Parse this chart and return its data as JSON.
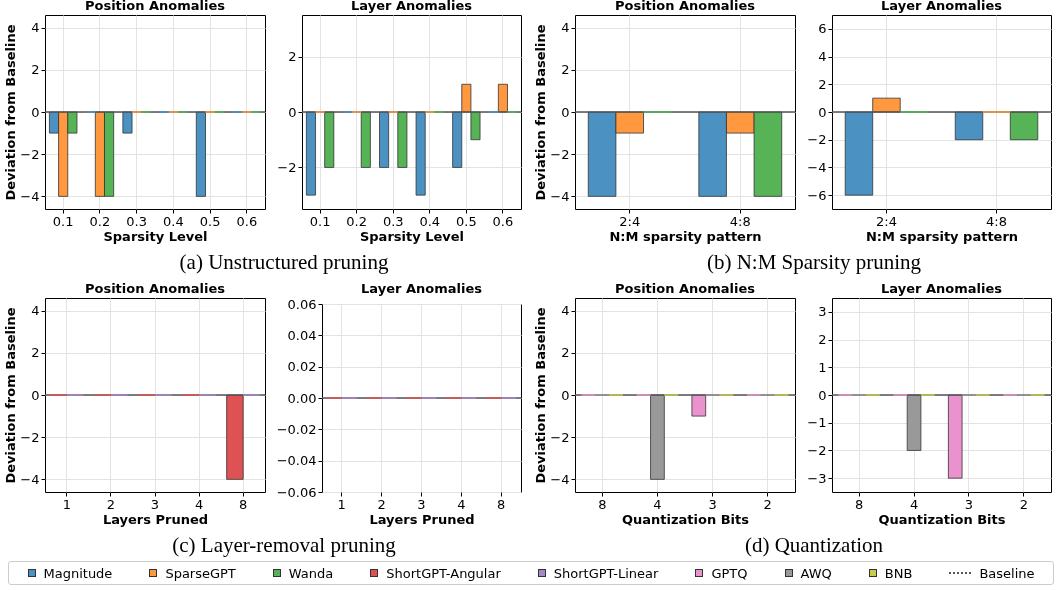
{
  "chart_data": [
    {
      "type": "bar",
      "title": "Position Anomalies",
      "xlabel": "Sparsity Level",
      "ylabel": "Deviation from Baseline",
      "categories": [
        "0.1",
        "0.2",
        "0.3",
        "0.4",
        "0.5",
        "0.6"
      ],
      "series": [
        {
          "name": "Magnitude",
          "color": "#4b92c3",
          "values": [
            -1,
            0,
            -1,
            0,
            -4,
            0
          ]
        },
        {
          "name": "SparseGPT",
          "color": "#ff983e",
          "values": [
            -4,
            -4,
            0,
            0,
            0,
            0
          ]
        },
        {
          "name": "Wanda",
          "color": "#56b356",
          "values": [
            -1,
            -4,
            0,
            0,
            0,
            0
          ]
        }
      ],
      "ylim": [
        -4.6,
        4.6
      ],
      "yticks": [
        -4,
        -2,
        0,
        2,
        4
      ],
      "grid": true,
      "legend": "bottom",
      "annotations": [
        "(a) Unstructured pruning"
      ],
      "ref_lines": [
        {
          "axis": "y",
          "value": 0,
          "label": "Baseline",
          "color": "#555555"
        }
      ]
    },
    {
      "type": "bar",
      "title": "Layer Anomalies",
      "xlabel": "Sparsity Level",
      "categories": [
        "0.1",
        "0.2",
        "0.3",
        "0.4",
        "0.5",
        "0.6"
      ],
      "series": [
        {
          "name": "Magnitude",
          "color": "#4b92c3",
          "values": [
            -3,
            0,
            -2,
            -3,
            -2,
            0
          ]
        },
        {
          "name": "SparseGPT",
          "color": "#ff983e",
          "values": [
            0,
            0,
            0,
            0,
            1,
            1
          ]
        },
        {
          "name": "Wanda",
          "color": "#56b356",
          "values": [
            -2,
            -2,
            -2,
            0,
            -1,
            0
          ]
        }
      ],
      "ylim": [
        -3.5,
        3.5
      ],
      "yticks": [
        -2,
        0,
        2
      ],
      "grid": true,
      "legend": "bottom",
      "ref_lines": [
        {
          "axis": "y",
          "value": 0,
          "color": "#555555"
        }
      ]
    },
    {
      "type": "bar",
      "title": "Position Anomalies",
      "xlabel": "N:M sparsity pattern",
      "ylabel": "Deviation from Baseline",
      "categories": [
        "2:4",
        "4:8"
      ],
      "series": [
        {
          "name": "Magnitude",
          "color": "#4b92c3",
          "values": [
            -4,
            -4
          ]
        },
        {
          "name": "SparseGPT",
          "color": "#ff983e",
          "values": [
            -1,
            -1
          ]
        },
        {
          "name": "Wanda",
          "color": "#56b356",
          "values": [
            0,
            -4
          ]
        }
      ],
      "ylim": [
        -4.6,
        4.6
      ],
      "yticks": [
        -4,
        -2,
        0,
        2,
        4
      ],
      "grid": true,
      "legend": "bottom",
      "annotations": [
        "(b) N:M Sparsity pruning"
      ],
      "ref_lines": [
        {
          "axis": "y",
          "value": 0,
          "color": "#555555"
        }
      ]
    },
    {
      "type": "bar",
      "title": "Layer Anomalies",
      "xlabel": "N:M sparsity pattern",
      "categories": [
        "2:4",
        "4:8"
      ],
      "series": [
        {
          "name": "Magnitude",
          "color": "#4b92c3",
          "values": [
            -6,
            -2
          ]
        },
        {
          "name": "SparseGPT",
          "color": "#ff983e",
          "values": [
            1,
            0
          ]
        },
        {
          "name": "Wanda",
          "color": "#56b356",
          "values": [
            0,
            -2
          ]
        }
      ],
      "ylim": [
        -7,
        7
      ],
      "yticks": [
        -6,
        -4,
        -2,
        0,
        2,
        4,
        6
      ],
      "grid": true,
      "legend": "bottom",
      "ref_lines": [
        {
          "axis": "y",
          "value": 0,
          "color": "#555555"
        }
      ]
    },
    {
      "type": "bar",
      "title": "Position Anomalies",
      "xlabel": "Layers Pruned",
      "ylabel": "Deviation from Baseline",
      "categories": [
        "1",
        "2",
        "3",
        "4",
        "8"
      ],
      "series": [
        {
          "name": "ShortGPT-Angular",
          "color": "#de5253",
          "values": [
            0,
            0,
            0,
            0,
            -4
          ]
        },
        {
          "name": "ShortGPT-Linear",
          "color": "#a985ca",
          "values": [
            0,
            0,
            0,
            0,
            0
          ]
        }
      ],
      "ylim": [
        -4.6,
        4.6
      ],
      "yticks": [
        -4,
        -2,
        0,
        2,
        4
      ],
      "grid": true,
      "legend": "bottom",
      "annotations": [
        "(c) Layer-removal pruning"
      ],
      "ref_lines": [
        {
          "axis": "y",
          "value": 0,
          "color": "#555555"
        }
      ]
    },
    {
      "type": "bar",
      "title": "Layer Anomalies",
      "xlabel": "Layers Pruned",
      "categories": [
        "1",
        "2",
        "3",
        "4",
        "8"
      ],
      "series": [
        {
          "name": "ShortGPT-Angular",
          "color": "#de5253",
          "values": [
            0,
            0,
            0,
            0,
            0
          ]
        },
        {
          "name": "ShortGPT-Linear",
          "color": "#a985ca",
          "values": [
            0,
            0,
            0,
            0,
            0
          ]
        }
      ],
      "ylim": [
        -0.06,
        0.06
      ],
      "yticks": [
        {
          "value": -0.06,
          "label": "−0.06"
        },
        {
          "value": -0.04,
          "label": "−0.04"
        },
        {
          "value": -0.02,
          "label": "−0.02"
        },
        {
          "value": 0,
          "label": "0.00"
        },
        {
          "value": 0.02,
          "label": "0.02"
        },
        {
          "value": 0.04,
          "label": "0.04"
        },
        {
          "value": 0.06,
          "label": "0.06"
        }
      ],
      "grid": true,
      "legend": "bottom",
      "ref_lines": [
        {
          "axis": "y",
          "value": 0,
          "color": "#555555"
        }
      ]
    },
    {
      "type": "bar",
      "title": "Position Anomalies",
      "xlabel": "Quantization Bits",
      "ylabel": "Deviation from Baseline",
      "categories": [
        "8",
        "4",
        "3",
        "2"
      ],
      "series": [
        {
          "name": "GPTQ",
          "color": "#e992ce",
          "values": [
            0,
            0,
            -1,
            0
          ]
        },
        {
          "name": "AWQ",
          "color": "#999999",
          "values": [
            0,
            -4,
            0,
            0
          ]
        },
        {
          "name": "BNB",
          "color": "#c9ca4e",
          "values": [
            0,
            0,
            0,
            0
          ]
        }
      ],
      "ylim": [
        -4.6,
        4.6
      ],
      "yticks": [
        -4,
        -2,
        0,
        2,
        4
      ],
      "grid": true,
      "legend": "bottom",
      "annotations": [
        "(d) Quantization"
      ],
      "ref_lines": [
        {
          "axis": "y",
          "value": 0,
          "color": "#555555"
        }
      ]
    },
    {
      "type": "bar",
      "title": "Layer Anomalies",
      "xlabel": "Quantization Bits",
      "categories": [
        "8",
        "4",
        "3",
        "2"
      ],
      "series": [
        {
          "name": "GPTQ",
          "color": "#e992ce",
          "values": [
            0,
            0,
            -3,
            0
          ]
        },
        {
          "name": "AWQ",
          "color": "#999999",
          "values": [
            0,
            -2,
            0,
            0
          ]
        },
        {
          "name": "BNB",
          "color": "#c9ca4e",
          "values": [
            0,
            0,
            0,
            0
          ]
        }
      ],
      "ylim": [
        -3.5,
        3.5
      ],
      "yticks": [
        -3,
        -2,
        -1,
        0,
        1,
        2,
        3
      ],
      "grid": true,
      "legend": "bottom",
      "ref_lines": [
        {
          "axis": "y",
          "value": 0,
          "color": "#555555"
        }
      ]
    }
  ]
}
